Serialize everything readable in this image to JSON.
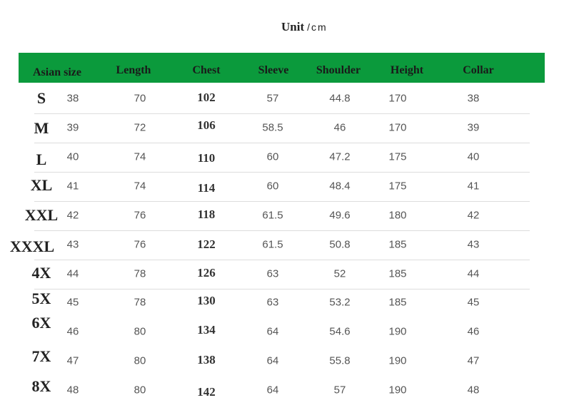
{
  "unit": {
    "label": "Unit",
    "value": "/cm"
  },
  "header_color": "#0b9a3c",
  "headers": [
    "Asian size",
    "Length",
    "Chest",
    "Sleeve",
    "Shoulder",
    "Height",
    "Collar"
  ],
  "rows": [
    {
      "size": "S",
      "collar_num": "38",
      "length": "70",
      "chest": "102",
      "sleeve": "57",
      "shoulder": "44.8",
      "height": "170",
      "collar": "38"
    },
    {
      "size": "M",
      "collar_num": "39",
      "length": "72",
      "chest": "106",
      "sleeve": "58.5",
      "shoulder": "46",
      "height": "170",
      "collar": "39"
    },
    {
      "size": "L",
      "collar_num": "40",
      "length": "74",
      "chest": "110",
      "sleeve": "60",
      "shoulder": "47.2",
      "height": "175",
      "collar": "40"
    },
    {
      "size": "XL",
      "collar_num": "41",
      "length": "74",
      "chest": "114",
      "sleeve": "60",
      "shoulder": "48.4",
      "height": "175",
      "collar": "41"
    },
    {
      "size": "XXL",
      "collar_num": "42",
      "length": "76",
      "chest": "118",
      "sleeve": "61.5",
      "shoulder": "49.6",
      "height": "180",
      "collar": "42"
    },
    {
      "size": "XXXL",
      "collar_num": "43",
      "length": "76",
      "chest": "122",
      "sleeve": "61.5",
      "shoulder": "50.8",
      "height": "185",
      "collar": "43"
    },
    {
      "size": "4X",
      "collar_num": "44",
      "length": "78",
      "chest": "126",
      "sleeve": "63",
      "shoulder": "52",
      "height": "185",
      "collar": "44"
    },
    {
      "size": "5X",
      "collar_num": "45",
      "length": "78",
      "chest": "130",
      "sleeve": "63",
      "shoulder": "53.2",
      "height": "185",
      "collar": "45"
    },
    {
      "size": "6X",
      "collar_num": "46",
      "length": "80",
      "chest": "134",
      "sleeve": "64",
      "shoulder": "54.6",
      "height": "190",
      "collar": "46"
    },
    {
      "size": "7X",
      "collar_num": "47",
      "length": "80",
      "chest": "138",
      "sleeve": "64",
      "shoulder": "55.8",
      "height": "190",
      "collar": "47"
    },
    {
      "size": "8X",
      "collar_num": "48",
      "length": "80",
      "chest": "142",
      "sleeve": "64",
      "shoulder": "57",
      "height": "190",
      "collar": "48"
    }
  ]
}
